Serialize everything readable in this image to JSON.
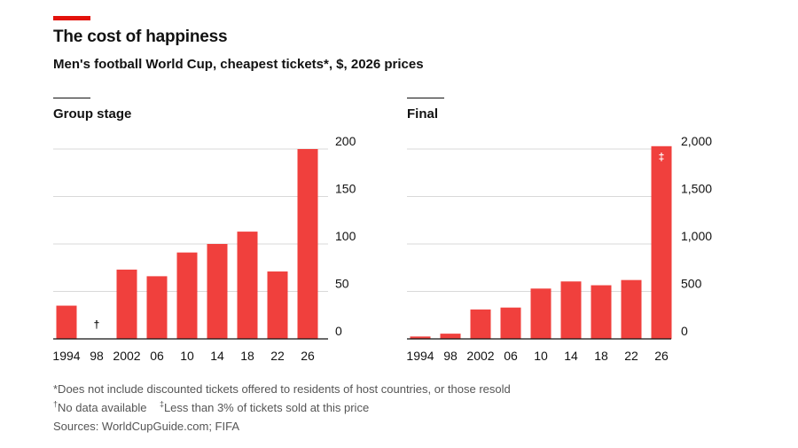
{
  "header": {
    "title": "The cost of happiness",
    "subtitle": "Men's football World Cup, cheapest tickets*, $, 2026 prices"
  },
  "colors": {
    "accent": "#e3120b",
    "bar": "#f0403d",
    "grid": "#d9d9d9",
    "axis": "#121212"
  },
  "chart_data": [
    {
      "type": "bar",
      "title": "Group stage",
      "categories": [
        "1994",
        "98",
        "2002",
        "06",
        "10",
        "14",
        "18",
        "22",
        "26"
      ],
      "values": [
        35,
        null,
        73,
        66,
        91,
        100,
        113,
        71,
        200
      ],
      "annotations": [
        {
          "category": "98",
          "text": "†"
        }
      ],
      "yticks": [
        "0",
        "50",
        "100",
        "150",
        "200"
      ],
      "ylim": [
        0,
        200
      ],
      "grid": true,
      "y_axis_side": "right"
    },
    {
      "type": "bar",
      "title": "Final",
      "categories": [
        "1994",
        "98",
        "2002",
        "06",
        "10",
        "14",
        "18",
        "22",
        "26"
      ],
      "values": [
        25,
        55,
        310,
        330,
        530,
        605,
        565,
        620,
        2030
      ],
      "annotations": [
        {
          "category": "26",
          "text": "‡"
        }
      ],
      "yticks": [
        "0",
        "500",
        "1,000",
        "1,500",
        "2,000"
      ],
      "ylim": [
        0,
        2000
      ],
      "grid": true,
      "y_axis_side": "right"
    }
  ],
  "footnotes": {
    "asterisk": "*Does not include discounted tickets offered to residents of host countries, or those resold",
    "dagger_mark": "†",
    "dagger_text": "No data available",
    "ddagger_mark": "‡",
    "ddagger_text": "Less than 3% of tickets sold at this price",
    "sources": "Sources: WorldCupGuide.com; FIFA"
  }
}
